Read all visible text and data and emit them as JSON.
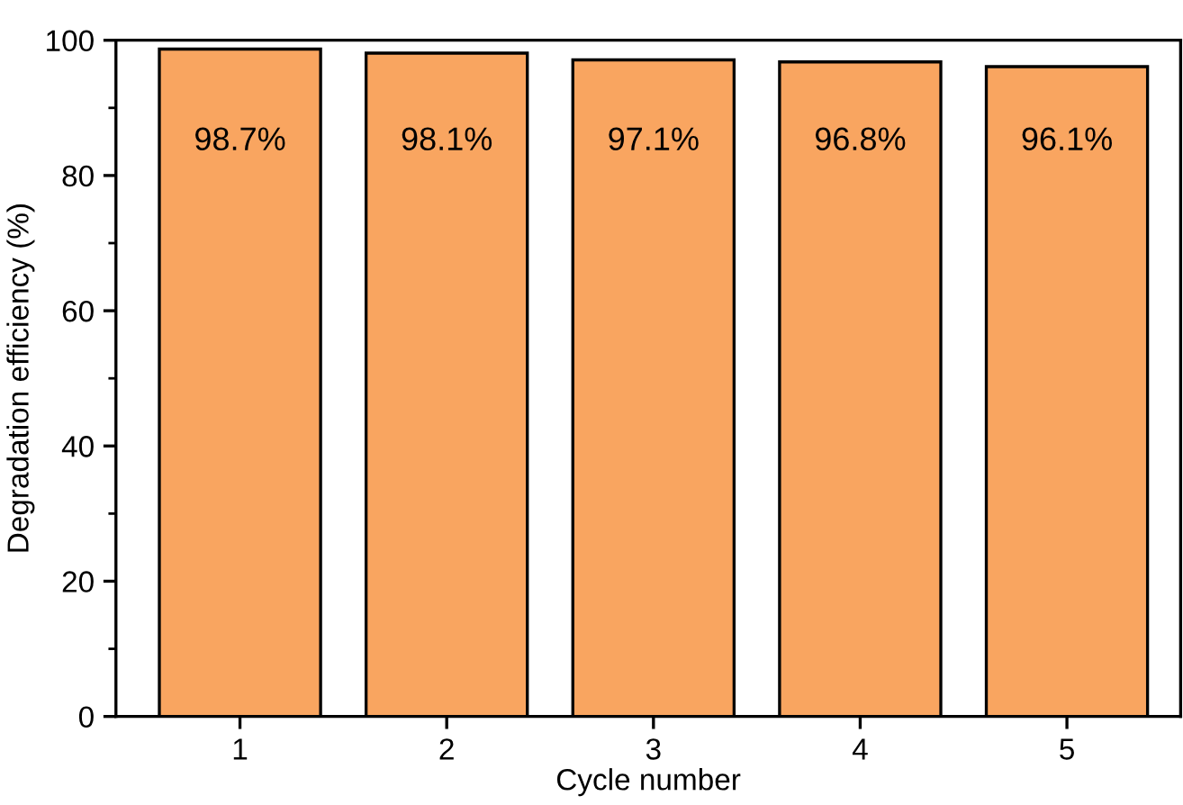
{
  "chart_data": {
    "type": "bar",
    "xlabel": "Cycle number",
    "ylabel": "Degradation efficiency (%)",
    "categories": [
      "1",
      "2",
      "3",
      "4",
      "5"
    ],
    "values": [
      98.7,
      98.1,
      97.1,
      96.8,
      96.1
    ],
    "value_labels": [
      "98.7%",
      "98.1%",
      "97.1%",
      "96.8%",
      "96.1%"
    ],
    "color": "#f9a560",
    "ylim": [
      0,
      100
    ],
    "yticks": [
      0,
      20,
      40,
      60,
      80,
      100
    ],
    "grid": false,
    "legend": false
  }
}
